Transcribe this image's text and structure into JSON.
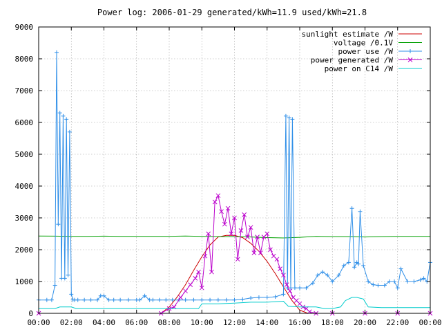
{
  "chart_data": {
    "type": "line",
    "title": "Power log: 2006-01-29 generated/kWh=11.9 used/kWh=21.8",
    "xlabel": "",
    "ylabel": "",
    "x_ticks": [
      "00:00",
      "02:00",
      "04:00",
      "06:00",
      "08:00",
      "10:00",
      "12:00",
      "14:00",
      "16:00",
      "18:00",
      "20:00",
      "22:00",
      "00:00"
    ],
    "y_ticks": [
      "0",
      "1000",
      "2000",
      "3000",
      "4000",
      "5000",
      "6000",
      "7000",
      "8000",
      "9000"
    ],
    "xlim": [
      0,
      24
    ],
    "ylim": [
      0,
      9000
    ],
    "grid": true,
    "legend_position": "top-right",
    "series": [
      {
        "name": "sunlight estimate /W",
        "color": "#cc0000",
        "marker": "none",
        "x": [
          7.5,
          8,
          8.5,
          9,
          9.5,
          10,
          10.5,
          11,
          11.5,
          12,
          12.5,
          13,
          13.5,
          14,
          14.5,
          15,
          15.5,
          16,
          16.5
        ],
        "y": [
          0,
          200,
          520,
          900,
          1350,
          1780,
          2150,
          2400,
          2450,
          2450,
          2380,
          2200,
          1950,
          1630,
          1250,
          830,
          420,
          100,
          0
        ]
      },
      {
        "name": "voltage /0.1V",
        "color": "#00a000",
        "marker": "none",
        "x": [
          0,
          1,
          2,
          3,
          4,
          5,
          6,
          7,
          8,
          9,
          10,
          11,
          12,
          13,
          14,
          15,
          16,
          17,
          18,
          19,
          20,
          21,
          22,
          23,
          24
        ],
        "y": [
          2430,
          2425,
          2420,
          2420,
          2425,
          2420,
          2420,
          2420,
          2420,
          2430,
          2420,
          2410,
          2410,
          2400,
          2380,
          2370,
          2390,
          2420,
          2410,
          2410,
          2400,
          2410,
          2420,
          2420,
          2420
        ]
      },
      {
        "name": "power use /W",
        "color": "#2f8fe8",
        "marker": "plus",
        "x": [
          0,
          0.5,
          0.8,
          1.0,
          1.1,
          1.2,
          1.3,
          1.4,
          1.5,
          1.6,
          1.7,
          1.8,
          1.9,
          2.0,
          2.1,
          2.2,
          2.4,
          2.8,
          3.2,
          3.6,
          3.8,
          4.0,
          4.3,
          4.6,
          5.0,
          5.5,
          6.0,
          6.2,
          6.5,
          6.8,
          7.0,
          7.4,
          7.8,
          8.2,
          8.6,
          9.0,
          9.5,
          10.0,
          10.5,
          11.0,
          11.5,
          12.0,
          12.5,
          13.0,
          13.5,
          14.0,
          14.5,
          15.0,
          15.15,
          15.25,
          15.35,
          15.45,
          15.55,
          15.7,
          16.0,
          16.4,
          16.8,
          17.1,
          17.4,
          17.7,
          18.0,
          18.4,
          18.7,
          19.0,
          19.2,
          19.35,
          19.5,
          19.6,
          19.7,
          19.9,
          20.2,
          20.5,
          20.8,
          21.2,
          21.5,
          21.8,
          22.0,
          22.2,
          22.6,
          23.0,
          23.4,
          23.6,
          23.8,
          24.0
        ],
        "y": [
          420,
          420,
          420,
          880,
          8200,
          2800,
          6300,
          1100,
          6200,
          1100,
          6100,
          1200,
          5700,
          600,
          420,
          420,
          420,
          420,
          420,
          420,
          550,
          550,
          420,
          420,
          420,
          420,
          420,
          420,
          550,
          420,
          420,
          420,
          420,
          420,
          420,
          420,
          420,
          420,
          420,
          420,
          420,
          420,
          440,
          480,
          500,
          500,
          520,
          600,
          6200,
          800,
          6150,
          800,
          6100,
          800,
          800,
          800,
          950,
          1200,
          1300,
          1200,
          1000,
          1200,
          1500,
          1600,
          3300,
          1450,
          1600,
          1550,
          3200,
          1500,
          1000,
          900,
          880,
          880,
          1000,
          1000,
          800,
          1400,
          1000,
          1000,
          1050,
          1100,
          1000,
          1600
        ]
      },
      {
        "name": "power generated /W",
        "color": "#bb00cc",
        "marker": "cross",
        "x": [
          0,
          7.5,
          8.0,
          8.3,
          8.7,
          9.0,
          9.3,
          9.6,
          9.8,
          10.0,
          10.2,
          10.4,
          10.6,
          10.8,
          11.0,
          11.2,
          11.4,
          11.6,
          11.8,
          12.0,
          12.2,
          12.4,
          12.6,
          12.8,
          13.0,
          13.2,
          13.4,
          13.6,
          13.8,
          14.0,
          14.2,
          14.4,
          14.6,
          14.8,
          15.0,
          15.2,
          15.4,
          15.6,
          15.8,
          16.0,
          16.2,
          16.4,
          16.6,
          17.0,
          18.0,
          20.0,
          22.0,
          24.0
        ],
        "y": [
          0,
          0,
          150,
          200,
          500,
          700,
          900,
          1100,
          1300,
          800,
          1800,
          2500,
          1300,
          3500,
          3700,
          3200,
          2800,
          3300,
          2500,
          3000,
          1700,
          2600,
          3100,
          2400,
          2700,
          1900,
          2400,
          1900,
          2400,
          2500,
          2000,
          1800,
          1700,
          1400,
          1200,
          900,
          700,
          500,
          400,
          300,
          200,
          150,
          50,
          0,
          0,
          0,
          0,
          0
        ]
      },
      {
        "name": "power on C14 /W",
        "color": "#00cccc",
        "marker": "none",
        "x": [
          0,
          1.0,
          1.3,
          2.0,
          2.3,
          5,
          8,
          9.8,
          10.0,
          11.0,
          12.0,
          13.0,
          14.0,
          15.0,
          15.3,
          16.0,
          16.5,
          17.0,
          17.5,
          18.0,
          18.5,
          18.8,
          19.2,
          19.5,
          19.9,
          20.2,
          21.0,
          22.0,
          23.0,
          24.0
        ],
        "y": [
          150,
          150,
          200,
          200,
          150,
          150,
          150,
          150,
          300,
          300,
          320,
          350,
          350,
          380,
          220,
          200,
          200,
          200,
          150,
          150,
          200,
          400,
          500,
          500,
          450,
          200,
          180,
          180,
          180,
          180
        ]
      }
    ]
  }
}
